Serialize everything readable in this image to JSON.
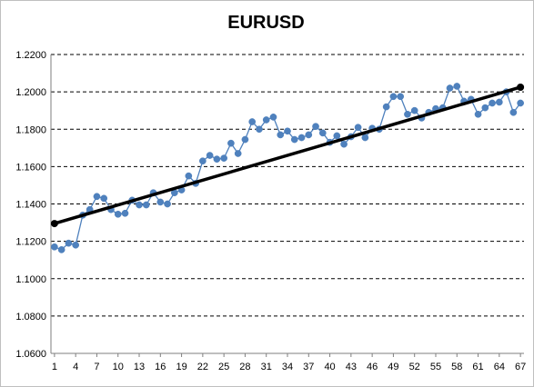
{
  "chart_data": {
    "type": "line",
    "title": "EURUSD",
    "xlabel": "",
    "ylabel": "",
    "ylim": [
      1.06,
      1.22
    ],
    "y_ticks": [
      "1.0600",
      "1.0800",
      "1.1000",
      "1.1200",
      "1.1400",
      "1.1600",
      "1.1800",
      "1.2000",
      "1.2200"
    ],
    "x_ticks": [
      1,
      4,
      7,
      10,
      13,
      16,
      19,
      22,
      25,
      28,
      31,
      34,
      37,
      40,
      43,
      46,
      49,
      52,
      55,
      58,
      61,
      64,
      67
    ],
    "grid": "horizontal-dashed",
    "legend": "none",
    "colors": {
      "series": "#4f81bd",
      "trend": "#000000"
    },
    "series": [
      {
        "x": [
          1,
          2,
          3,
          4,
          5,
          6,
          7,
          8,
          9,
          10,
          11,
          12,
          13,
          14,
          15,
          16,
          17,
          18,
          19,
          20,
          21,
          22,
          23,
          24,
          25,
          26,
          27,
          28,
          29,
          30,
          31,
          32,
          33,
          34,
          35,
          36,
          37,
          38,
          39,
          40,
          41,
          42,
          43,
          44,
          45,
          46,
          47,
          48,
          49,
          50,
          51,
          52,
          53,
          54,
          55,
          56,
          57,
          58,
          59,
          60,
          61,
          62,
          63,
          64,
          65,
          66,
          67
        ],
        "values": [
          1.117,
          1.1155,
          1.119,
          1.118,
          1.134,
          1.137,
          1.144,
          1.143,
          1.137,
          1.1345,
          1.135,
          1.142,
          1.1395,
          1.1395,
          1.146,
          1.141,
          1.14,
          1.146,
          1.1475,
          1.155,
          1.151,
          1.163,
          1.166,
          1.164,
          1.1645,
          1.1725,
          1.167,
          1.1745,
          1.184,
          1.18,
          1.185,
          1.1865,
          1.177,
          1.179,
          1.1745,
          1.1755,
          1.177,
          1.1815,
          1.178,
          1.173,
          1.1765,
          1.172,
          1.176,
          1.181,
          1.1755,
          1.1805,
          1.18,
          1.192,
          1.1975,
          1.1975,
          1.188,
          1.19,
          1.186,
          1.189,
          1.191,
          1.1915,
          1.202,
          1.203,
          1.195,
          1.196,
          1.188,
          1.1915,
          1.194,
          1.1945,
          1.2,
          1.189,
          1.194
        ]
      },
      {
        "type": "trendline",
        "x": [
          1,
          67
        ],
        "values": [
          1.1295,
          1.2025
        ]
      }
    ]
  }
}
